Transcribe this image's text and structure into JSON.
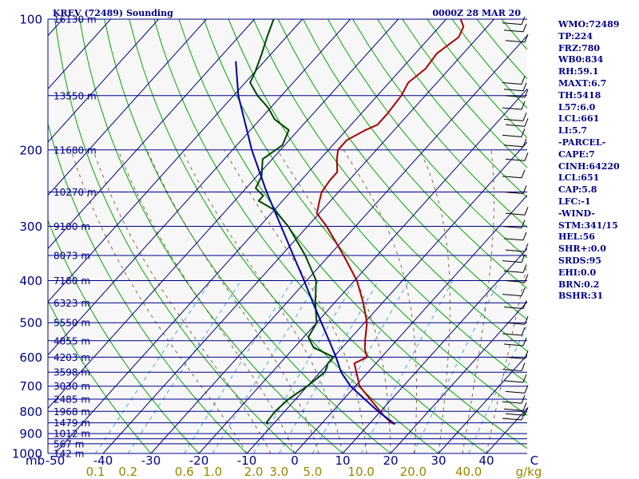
{
  "header": {
    "station": "KREV (72489) Sounding",
    "time": "0000Z 28 MAR 20"
  },
  "indices": [
    "WMO:72489",
    "TP:224",
    "FRZ:780",
    "WB0:834",
    "RH:59.1",
    "MAXT:6.7",
    "TH:5418",
    "L57:6.0",
    "LCL:661",
    "LI:5.7",
    "-PARCEL-",
    "CAPE:7",
    "CINH:64220",
    "LCL:651",
    "CAP:5.8",
    "LFC:-1",
    "-WIND-",
    "STM:341/15",
    "HEL:56",
    "SHR+:0.0",
    "SRDS:95",
    "EHI:0.0",
    "BRN:0.2",
    "BSHR:31"
  ],
  "colors": {
    "frame": "#000088",
    "temperature": "#aa0000",
    "dewpoint": "#004400",
    "parcel": "#0000aa",
    "dry_adiabat": "#00aa00",
    "moist_adiabat": "#886644",
    "mixing_ratio": "#44aadd",
    "isotherm": "#000088",
    "mixing_label": "#998800"
  },
  "chart_data": {
    "type": "line",
    "title": "KREV (72489) Sounding 0000Z 28 MAR 20",
    "xlabel": "C",
    "ylabel": "mb",
    "xlim": [
      -50,
      50
    ],
    "ylim": [
      1000,
      100
    ],
    "y_scale": "log",
    "isobars_mb": [
      100,
      150,
      200,
      250,
      300,
      350,
      400,
      450,
      500,
      550,
      600,
      650,
      700,
      750,
      800,
      850,
      900,
      925,
      950,
      1000
    ],
    "pressure_labels": [
      "100",
      "200",
      "300",
      "400",
      "500",
      "600",
      "700",
      "800",
      "900",
      "1000"
    ],
    "pressure_label_values": [
      100,
      200,
      300,
      400,
      500,
      600,
      700,
      800,
      900,
      1000
    ],
    "temperature_ticks": [
      "-50",
      "-40",
      "-30",
      "-20",
      "-10",
      "0",
      "10",
      "20",
      "30",
      "40",
      "C"
    ],
    "y_unit_label": "mb",
    "height_labels": [
      {
        "p": 100,
        "label": "16130 m"
      },
      {
        "p": 150,
        "label": "13550 m"
      },
      {
        "p": 200,
        "label": "11680 m"
      },
      {
        "p": 250,
        "label": "10270 m"
      },
      {
        "p": 300,
        "label": "9100 m"
      },
      {
        "p": 350,
        "label": "8073 m"
      },
      {
        "p": 400,
        "label": "7180 m"
      },
      {
        "p": 450,
        "label": "6323 m"
      },
      {
        "p": 500,
        "label": "5550 m"
      },
      {
        "p": 550,
        "label": "4855 m"
      },
      {
        "p": 600,
        "label": "4203 m"
      },
      {
        "p": 650,
        "label": "3598 m"
      },
      {
        "p": 700,
        "label": "3030 m"
      },
      {
        "p": 750,
        "label": "2485 m"
      },
      {
        "p": 800,
        "label": "1968 m"
      },
      {
        "p": 850,
        "label": "1479 m"
      },
      {
        "p": 900,
        "label": "1012 m"
      },
      {
        "p": 950,
        "label": "567 m"
      },
      {
        "p": 1000,
        "label": "142 m"
      }
    ],
    "mixing_ratios_gkg": [
      0.1,
      0.2,
      0.6,
      1.0,
      2.0,
      3.0,
      5.0,
      10.0,
      20.0,
      40.0
    ],
    "mixing_ratio_labels": [
      "0.1",
      "0.2",
      "0.6",
      "1.0",
      "2.0",
      "3.0",
      "5.0",
      "10.0",
      "20.0",
      "40.0",
      "g/kg"
    ],
    "series": [
      {
        "key": "temperature",
        "points": [
          {
            "p": 856,
            "t": 15.4
          },
          {
            "p": 850,
            "t": 14.4
          },
          {
            "p": 820,
            "t": 11.6
          },
          {
            "p": 700,
            "t": 0.9
          },
          {
            "p": 650,
            "t": -2.4
          },
          {
            "p": 620,
            "t": -4.5
          },
          {
            "p": 600,
            "t": -3.0
          },
          {
            "p": 575,
            "t": -5.0
          },
          {
            "p": 545,
            "t": -6.8
          },
          {
            "p": 500,
            "t": -9.5
          },
          {
            "p": 450,
            "t": -14.0
          },
          {
            "p": 400,
            "t": -19.5
          },
          {
            "p": 350,
            "t": -27.0
          },
          {
            "p": 300,
            "t": -36.0
          },
          {
            "p": 280,
            "t": -40.5
          },
          {
            "p": 260,
            "t": -42.5
          },
          {
            "p": 250,
            "t": -43.5
          },
          {
            "p": 235,
            "t": -44.0
          },
          {
            "p": 225,
            "t": -44.0
          },
          {
            "p": 210,
            "t": -46.5
          },
          {
            "p": 200,
            "t": -48.0
          },
          {
            "p": 190,
            "t": -48.0
          },
          {
            "p": 180,
            "t": -46.0
          },
          {
            "p": 175,
            "t": -44.5
          },
          {
            "p": 165,
            "t": -44.5
          },
          {
            "p": 150,
            "t": -45.0
          },
          {
            "p": 140,
            "t": -46.0
          },
          {
            "p": 130,
            "t": -45.0
          },
          {
            "p": 120,
            "t": -45.5
          },
          {
            "p": 110,
            "t": -44.0
          },
          {
            "p": 104,
            "t": -45.0
          },
          {
            "p": 100,
            "t": -47.0
          }
        ]
      },
      {
        "key": "dewpoint",
        "points": [
          {
            "p": 856,
            "t": -11.0
          },
          {
            "p": 850,
            "t": -11.7
          },
          {
            "p": 800,
            "t": -12.0
          },
          {
            "p": 750,
            "t": -11.5
          },
          {
            "p": 700,
            "t": -10.0
          },
          {
            "p": 650,
            "t": -9.0
          },
          {
            "p": 620,
            "t": -10.0
          },
          {
            "p": 600,
            "t": -10.0
          },
          {
            "p": 570,
            "t": -16.0
          },
          {
            "p": 540,
            "t": -19.0
          },
          {
            "p": 500,
            "t": -20.0
          },
          {
            "p": 450,
            "t": -24.0
          },
          {
            "p": 400,
            "t": -28.0
          },
          {
            "p": 350,
            "t": -35.0
          },
          {
            "p": 300,
            "t": -44.0
          },
          {
            "p": 275,
            "t": -50.0
          },
          {
            "p": 262,
            "t": -55.0
          },
          {
            "p": 255,
            "t": -55.0
          },
          {
            "p": 245,
            "t": -58.0
          },
          {
            "p": 230,
            "t": -59.0
          },
          {
            "p": 210,
            "t": -62.0
          },
          {
            "p": 195,
            "t": -60.5
          },
          {
            "p": 180,
            "t": -62.0
          },
          {
            "p": 170,
            "t": -67.0
          },
          {
            "p": 160,
            "t": -70.5
          },
          {
            "p": 150,
            "t": -75.0
          },
          {
            "p": 140,
            "t": -79.0
          },
          {
            "p": 132,
            "t": -80.0
          },
          {
            "p": 120,
            "t": -82.0
          },
          {
            "p": 110,
            "t": -84.0
          },
          {
            "p": 100,
            "t": -86.0
          }
        ]
      },
      {
        "key": "parcel",
        "points": [
          {
            "p": 856,
            "t": 15.4
          },
          {
            "p": 800,
            "t": 9.5
          },
          {
            "p": 700,
            "t": -1.0
          },
          {
            "p": 651,
            "t": -5.5
          },
          {
            "p": 600,
            "t": -9.5
          },
          {
            "p": 550,
            "t": -14.0
          },
          {
            "p": 500,
            "t": -19.0
          },
          {
            "p": 450,
            "t": -24.5
          },
          {
            "p": 400,
            "t": -30.5
          },
          {
            "p": 350,
            "t": -37.5
          },
          {
            "p": 300,
            "t": -45.5
          },
          {
            "p": 250,
            "t": -55.0
          },
          {
            "p": 200,
            "t": -66.0
          },
          {
            "p": 150,
            "t": -79.0
          },
          {
            "p": 125,
            "t": -86.0
          }
        ]
      }
    ]
  }
}
